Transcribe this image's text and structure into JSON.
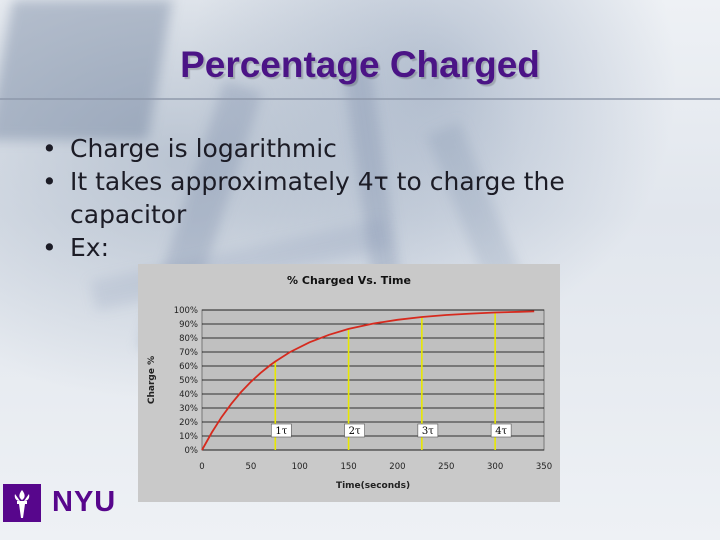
{
  "slide": {
    "title": "Percentage Charged",
    "bullets": [
      "Charge is logarithmic",
      "It takes approximately 4τ to charge the capacitor",
      "Ex:"
    ]
  },
  "logo": {
    "text": "NYU",
    "icon": "nyu-torch-icon"
  },
  "chart_data": {
    "type": "line",
    "title": "% Charged Vs. Time",
    "xlabel": "Time(seconds)",
    "ylabel": "Charge %",
    "xlim": [
      0,
      350
    ],
    "ylim": [
      0,
      100
    ],
    "x_ticks": [
      "0",
      "50",
      "100",
      "150",
      "200",
      "250",
      "300",
      "350"
    ],
    "y_ticks": [
      "0%",
      "10%",
      "20%",
      "30%",
      "40%",
      "50%",
      "60%",
      "70%",
      "80%",
      "90%",
      "100%"
    ],
    "grid": true,
    "series": [
      {
        "x": [
          0,
          10,
          20,
          30,
          40,
          50,
          60,
          70,
          75,
          90,
          110,
          130,
          150,
          175,
          200,
          225,
          250,
          275,
          300,
          325,
          340
        ],
        "y": [
          0,
          12.5,
          23.4,
          33.0,
          41.4,
          48.7,
          55.1,
          60.7,
          63.2,
          69.9,
          76.9,
          82.3,
          86.5,
          90.3,
          93.0,
          95.0,
          96.4,
          97.4,
          98.2,
          98.7,
          99.0
        ],
        "color": "#d62a1e"
      }
    ],
    "markers": [
      {
        "x": 75,
        "y": 63.2,
        "label": "1τ"
      },
      {
        "x": 150,
        "y": 86.5,
        "label": "2τ"
      },
      {
        "x": 225,
        "y": 95.0,
        "label": "3τ"
      },
      {
        "x": 300,
        "y": 98.2,
        "label": "4τ"
      }
    ],
    "marker_color": "#e8e800"
  }
}
